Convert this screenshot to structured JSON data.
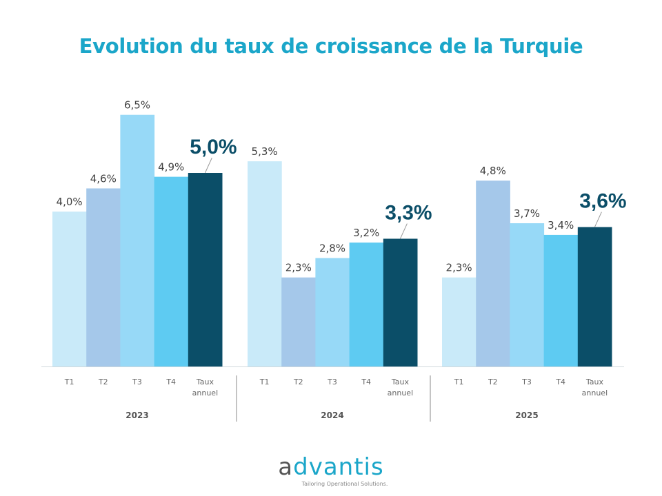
{
  "title": "Evolution du taux de croissance de la Turquie",
  "logo": {
    "first": "a",
    "rest": "dvantis",
    "tagline": "Tailoring Operational Solutions."
  },
  "chart_data": {
    "type": "bar",
    "title": "Evolution du taux de croissance de la Turquie",
    "categories": [
      "T1",
      "T2",
      "T3",
      "T4",
      "Taux annuel"
    ],
    "groups": [
      {
        "year": "2023",
        "values": [
          4.0,
          4.6,
          6.5,
          4.9,
          5.0
        ],
        "labels": [
          "4,0%",
          "4,6%",
          "6,5%",
          "4,9%",
          "5,0%"
        ]
      },
      {
        "year": "2024",
        "values": [
          5.3,
          2.3,
          2.8,
          3.2,
          3.3
        ],
        "labels": [
          "5,3%",
          "2,3%",
          "2,8%",
          "3,2%",
          "3,3%"
        ]
      },
      {
        "year": "2025",
        "values": [
          2.3,
          4.8,
          3.7,
          3.4,
          3.6
        ],
        "labels": [
          "2,3%",
          "4,8%",
          "3,7%",
          "3,4%",
          "3,6%"
        ]
      }
    ],
    "colors": [
      "#c9eaf9",
      "#a5c8ea",
      "#97d9f7",
      "#5ecbf2",
      "#0b4e68"
    ],
    "ylim": [
      0,
      7
    ],
    "grid": false
  }
}
